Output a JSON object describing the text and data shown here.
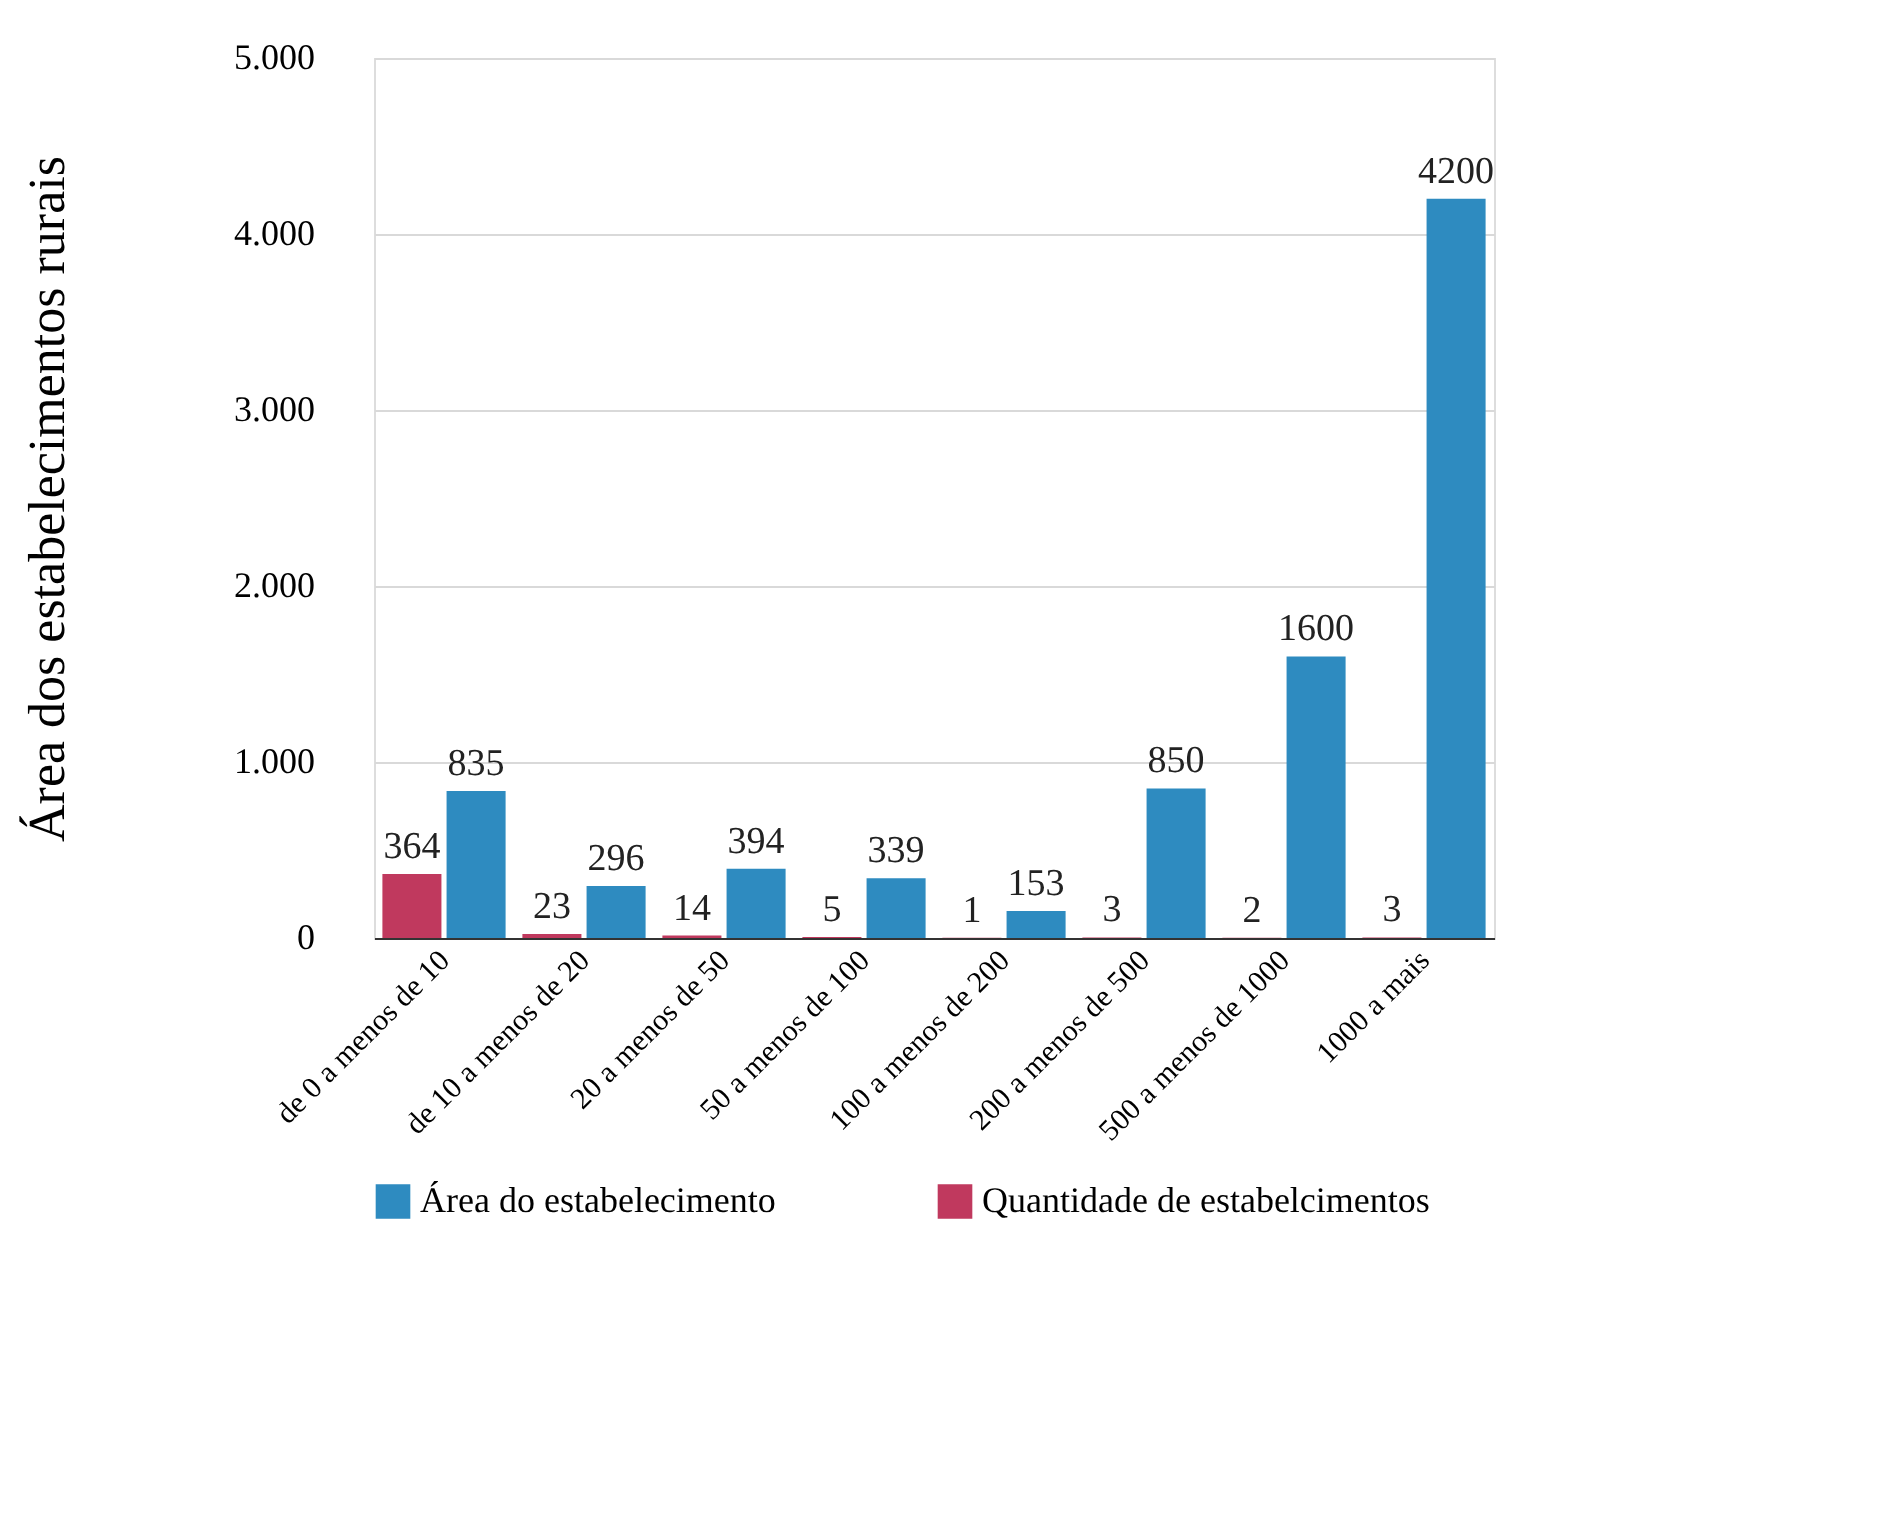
{
  "chart_data": {
    "type": "bar",
    "ylabel": "Área dos estabelecimentos rurais",
    "categories": [
      "de 0 a menos de 10",
      "de 10 a menos de 20",
      "20 a menos de 50",
      "50 a menos de 100",
      "100 a menos de 200",
      "200 a menos de 500",
      "500 a menos de 1000",
      "1000 a mais"
    ],
    "series": [
      {
        "name": "Área do estabelecimento",
        "color": "#2e8bc0",
        "values": [
          835,
          296,
          394,
          339,
          153,
          850,
          1600,
          4200
        ]
      },
      {
        "name": "Quantidade de estabelcimentos",
        "color": "#c0395e",
        "values": [
          364,
          23,
          14,
          5,
          1,
          3,
          2,
          3
        ]
      }
    ],
    "ylim": [
      0,
      5000
    ],
    "yticks": [
      0,
      {
        "value": 1000,
        "label": "1.000"
      },
      {
        "value": 2000,
        "label": "2.000"
      },
      {
        "value": 3000,
        "label": "3.000"
      },
      {
        "value": 4000,
        "label": "4.000"
      },
      {
        "value": 5000,
        "label": "5.000"
      }
    ],
    "grid": "y",
    "legend": "bottom",
    "data_labels": true
  }
}
